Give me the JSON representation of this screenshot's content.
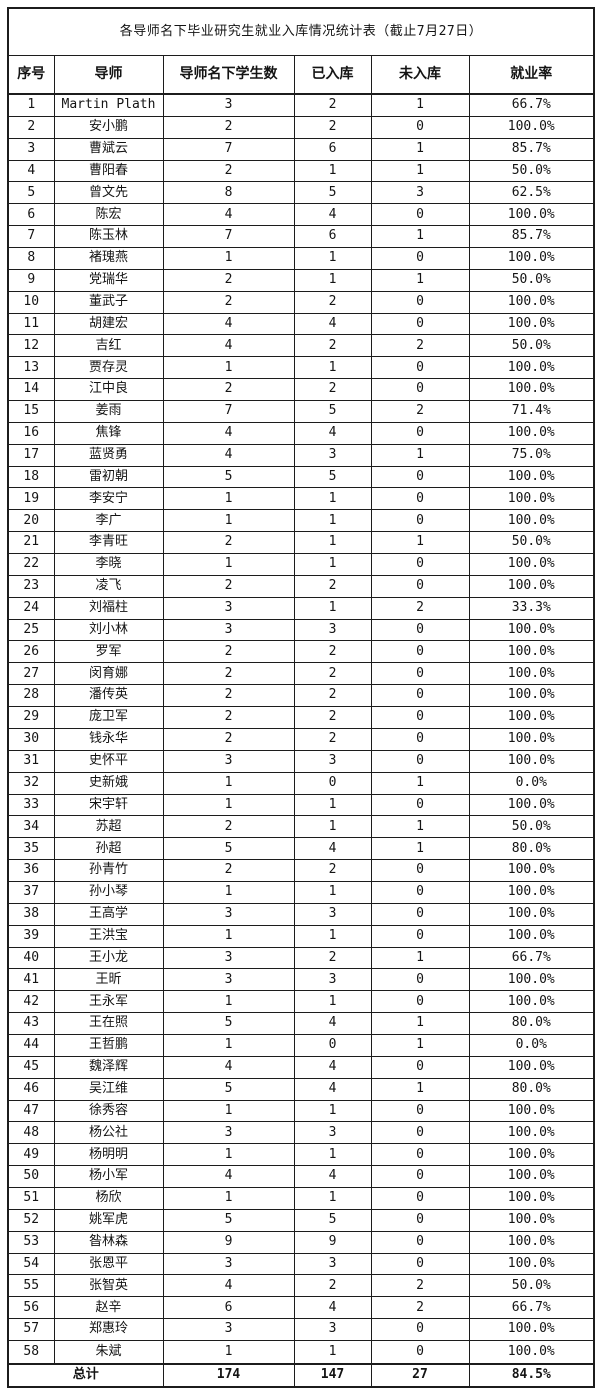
{
  "table": {
    "title": "各导师名下毕业研究生就业入库情况统计表（截止7月27日）",
    "columns": [
      "序号",
      "导师",
      "导师名下学生数",
      "已入库",
      "未入库",
      "就业率"
    ],
    "rows": [
      [
        "1",
        "Martin Plath",
        "3",
        "2",
        "1",
        "66.7%"
      ],
      [
        "2",
        "安小鹏",
        "2",
        "2",
        "0",
        "100.0%"
      ],
      [
        "3",
        "曹斌云",
        "7",
        "6",
        "1",
        "85.7%"
      ],
      [
        "4",
        "曹阳春",
        "2",
        "1",
        "1",
        "50.0%"
      ],
      [
        "5",
        "曾文先",
        "8",
        "5",
        "3",
        "62.5%"
      ],
      [
        "6",
        "陈宏",
        "4",
        "4",
        "0",
        "100.0%"
      ],
      [
        "7",
        "陈玉林",
        "7",
        "6",
        "1",
        "85.7%"
      ],
      [
        "8",
        "褚瑰燕",
        "1",
        "1",
        "0",
        "100.0%"
      ],
      [
        "9",
        "党瑞华",
        "2",
        "1",
        "1",
        "50.0%"
      ],
      [
        "10",
        "董武子",
        "2",
        "2",
        "0",
        "100.0%"
      ],
      [
        "11",
        "胡建宏",
        "4",
        "4",
        "0",
        "100.0%"
      ],
      [
        "12",
        "吉红",
        "4",
        "2",
        "2",
        "50.0%"
      ],
      [
        "13",
        "贾存灵",
        "1",
        "1",
        "0",
        "100.0%"
      ],
      [
        "14",
        "江中良",
        "2",
        "2",
        "0",
        "100.0%"
      ],
      [
        "15",
        "姜雨",
        "7",
        "5",
        "2",
        "71.4%"
      ],
      [
        "16",
        "焦锋",
        "4",
        "4",
        "0",
        "100.0%"
      ],
      [
        "17",
        "蓝贤勇",
        "4",
        "3",
        "1",
        "75.0%"
      ],
      [
        "18",
        "雷初朝",
        "5",
        "5",
        "0",
        "100.0%"
      ],
      [
        "19",
        "李安宁",
        "1",
        "1",
        "0",
        "100.0%"
      ],
      [
        "20",
        "李广",
        "1",
        "1",
        "0",
        "100.0%"
      ],
      [
        "21",
        "李青旺",
        "2",
        "1",
        "1",
        "50.0%"
      ],
      [
        "22",
        "李晓",
        "1",
        "1",
        "0",
        "100.0%"
      ],
      [
        "23",
        "凌飞",
        "2",
        "2",
        "0",
        "100.0%"
      ],
      [
        "24",
        "刘福柱",
        "3",
        "1",
        "2",
        "33.3%"
      ],
      [
        "25",
        "刘小林",
        "3",
        "3",
        "0",
        "100.0%"
      ],
      [
        "26",
        "罗军",
        "2",
        "2",
        "0",
        "100.0%"
      ],
      [
        "27",
        "闵育娜",
        "2",
        "2",
        "0",
        "100.0%"
      ],
      [
        "28",
        "潘传英",
        "2",
        "2",
        "0",
        "100.0%"
      ],
      [
        "29",
        "庞卫军",
        "2",
        "2",
        "0",
        "100.0%"
      ],
      [
        "30",
        "钱永华",
        "2",
        "2",
        "0",
        "100.0%"
      ],
      [
        "31",
        "史怀平",
        "3",
        "3",
        "0",
        "100.0%"
      ],
      [
        "32",
        "史新娥",
        "1",
        "0",
        "1",
        "0.0%"
      ],
      [
        "33",
        "宋宇轩",
        "1",
        "1",
        "0",
        "100.0%"
      ],
      [
        "34",
        "苏超",
        "2",
        "1",
        "1",
        "50.0%"
      ],
      [
        "35",
        "孙超",
        "5",
        "4",
        "1",
        "80.0%"
      ],
      [
        "36",
        "孙青竹",
        "2",
        "2",
        "0",
        "100.0%"
      ],
      [
        "37",
        "孙小琴",
        "1",
        "1",
        "0",
        "100.0%"
      ],
      [
        "38",
        "王高学",
        "3",
        "3",
        "0",
        "100.0%"
      ],
      [
        "39",
        "王洪宝",
        "1",
        "1",
        "0",
        "100.0%"
      ],
      [
        "40",
        "王小龙",
        "3",
        "2",
        "1",
        "66.7%"
      ],
      [
        "41",
        "王昕",
        "3",
        "3",
        "0",
        "100.0%"
      ],
      [
        "42",
        "王永军",
        "1",
        "1",
        "0",
        "100.0%"
      ],
      [
        "43",
        "王在照",
        "5",
        "4",
        "1",
        "80.0%"
      ],
      [
        "44",
        "王哲鹏",
        "1",
        "0",
        "1",
        "0.0%"
      ],
      [
        "45",
        "魏泽辉",
        "4",
        "4",
        "0",
        "100.0%"
      ],
      [
        "46",
        "吴江维",
        "5",
        "4",
        "1",
        "80.0%"
      ],
      [
        "47",
        "徐秀容",
        "1",
        "1",
        "0",
        "100.0%"
      ],
      [
        "48",
        "杨公社",
        "3",
        "3",
        "0",
        "100.0%"
      ],
      [
        "49",
        "杨明明",
        "1",
        "1",
        "0",
        "100.0%"
      ],
      [
        "50",
        "杨小军",
        "4",
        "4",
        "0",
        "100.0%"
      ],
      [
        "51",
        "杨欣",
        "1",
        "1",
        "0",
        "100.0%"
      ],
      [
        "52",
        "姚军虎",
        "5",
        "5",
        "0",
        "100.0%"
      ],
      [
        "53",
        "昝林森",
        "9",
        "9",
        "0",
        "100.0%"
      ],
      [
        "54",
        "张恩平",
        "3",
        "3",
        "0",
        "100.0%"
      ],
      [
        "55",
        "张智英",
        "4",
        "2",
        "2",
        "50.0%"
      ],
      [
        "56",
        "赵辛",
        "6",
        "4",
        "2",
        "66.7%"
      ],
      [
        "57",
        "郑惠玲",
        "3",
        "3",
        "0",
        "100.0%"
      ],
      [
        "58",
        "朱斌",
        "1",
        "1",
        "0",
        "100.0%"
      ]
    ],
    "total": {
      "label": "总计",
      "students": "174",
      "entered": "147",
      "not_entered": "27",
      "rate": "84.5%"
    },
    "colors": {
      "border": "#1c1c1c",
      "background": "#ffffff",
      "text": "#141414"
    }
  }
}
